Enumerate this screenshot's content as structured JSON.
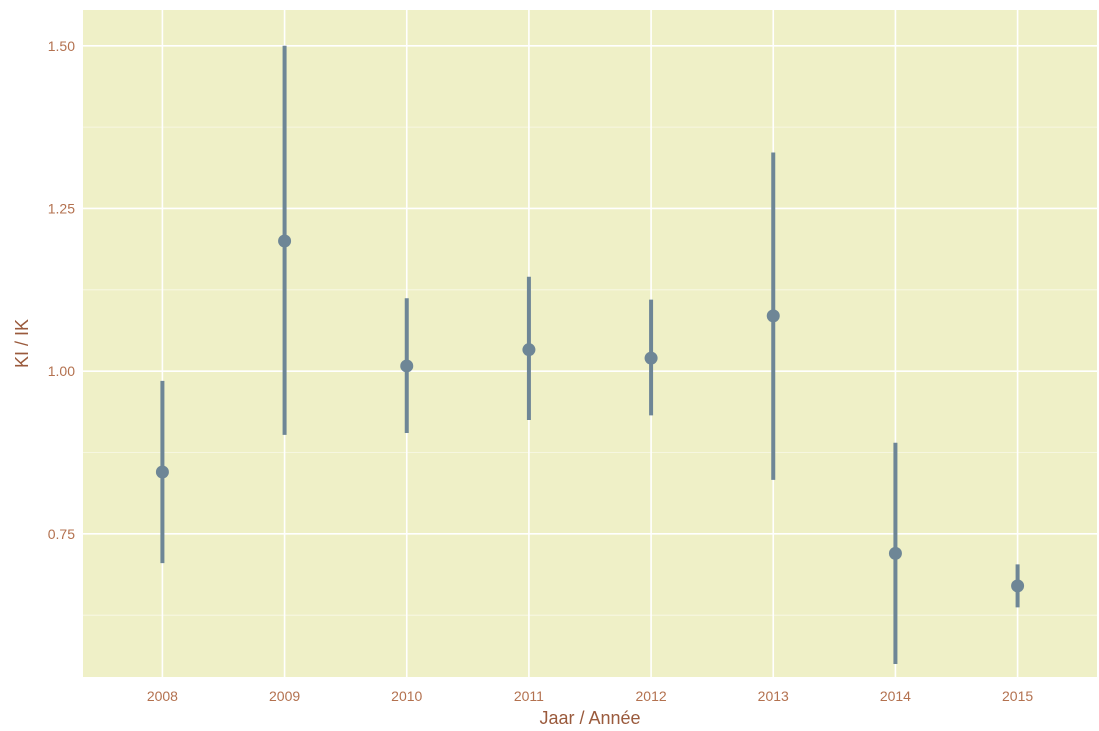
{
  "chart_data": {
    "type": "scatter",
    "xlabel": "Jaar / Année",
    "ylabel": "KI / IK",
    "categories": [
      "2008",
      "2009",
      "2010",
      "2011",
      "2012",
      "2013",
      "2014",
      "2015"
    ],
    "y_ticks": [
      "0.75",
      "1.00",
      "1.25",
      "1.50"
    ],
    "ylim": [
      0.53,
      1.555
    ],
    "grid": true,
    "series": [
      {
        "values": [
          0.845,
          1.2,
          1.008,
          1.033,
          1.02,
          1.085,
          0.72,
          0.67
        ],
        "lower": [
          0.705,
          0.902,
          0.905,
          0.925,
          0.932,
          0.833,
          0.55,
          0.637
        ],
        "upper": [
          0.985,
          1.5,
          1.112,
          1.145,
          1.11,
          1.336,
          0.89,
          0.703
        ]
      }
    ],
    "colors": {
      "panel_background": "#eff0c7",
      "grid": "#ffffff",
      "point": "#6e8696",
      "text": "#b3714f",
      "title": "#9a5a3c"
    }
  }
}
